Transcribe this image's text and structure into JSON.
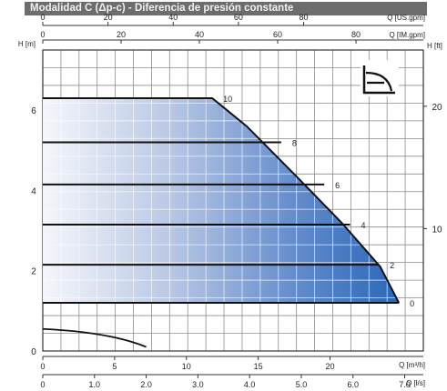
{
  "title": "Modalidad C (Δp-c) - Diferencia de presión constante",
  "colors": {
    "title_bg": "#6d6d6d",
    "title_text": "#f2f2f2",
    "area_light": "#f4f6fb",
    "area_dark": "#1f5fb4",
    "curve": "#111111",
    "grid": "#8c8c8c"
  },
  "icon": "mode-pictogram-icon",
  "chart_data": {
    "type": "area",
    "axes": {
      "left": {
        "label": "H [m]",
        "ticks": [
          0,
          2,
          4,
          6
        ],
        "range": [
          0,
          7.5
        ]
      },
      "right": {
        "label": "H [ft]",
        "ticks": [
          10,
          20
        ],
        "range": [
          0,
          24.6
        ]
      },
      "bottom_primary": {
        "label": "Q [m³/h]",
        "ticks": [
          0,
          5,
          10,
          15,
          20
        ],
        "range": [
          0,
          26.5
        ]
      },
      "bottom_secondary": {
        "label": "Q [l/s]",
        "ticks": [
          "0",
          "1.0",
          "2.0",
          "3.0",
          "4.0",
          "5.0",
          "6.0",
          "7.0"
        ],
        "tick_values": [
          0,
          1,
          2,
          3,
          4,
          5,
          6,
          7
        ],
        "range": [
          0,
          7.36
        ]
      },
      "top_primary": {
        "label": "Q [US.gpm]",
        "ticks": [
          0,
          20,
          40,
          60,
          80
        ],
        "range": [
          0,
          116.7
        ]
      },
      "top_secondary": {
        "label": "Q [IM.gpm]",
        "ticks": [
          0,
          20,
          40,
          60,
          80
        ],
        "range": [
          0,
          97.2
        ]
      }
    },
    "grid": true,
    "envelope": {
      "x": [
        0,
        11.8,
        14.2,
        17.8,
        20.8,
        23.5,
        24.8
      ],
      "y": [
        6.3,
        6.3,
        5.6,
        4.3,
        3.2,
        2.1,
        1.2
      ]
    },
    "series": [
      {
        "name": "10",
        "x": [
          0,
          11.8
        ],
        "y": [
          6.3,
          6.3
        ]
      },
      {
        "name": "8",
        "x": [
          0,
          16.6
        ],
        "y": [
          5.2,
          5.2
        ]
      },
      {
        "name": "6",
        "x": [
          0,
          19.6
        ],
        "y": [
          4.15,
          4.15
        ]
      },
      {
        "name": "4",
        "x": [
          0,
          21.4
        ],
        "y": [
          3.15,
          3.15
        ]
      },
      {
        "name": "2",
        "x": [
          0,
          23.4
        ],
        "y": [
          2.15,
          2.15
        ]
      },
      {
        "name": "0",
        "x": [
          0,
          24.8
        ],
        "y": [
          1.2,
          1.2
        ]
      }
    ],
    "min_curve": {
      "x": [
        0,
        3,
        5.5,
        7.2
      ],
      "y": [
        0.55,
        0.5,
        0.35,
        0.1
      ]
    },
    "xlim": [
      0,
      26.5
    ],
    "ylim": [
      0,
      7.5
    ]
  }
}
